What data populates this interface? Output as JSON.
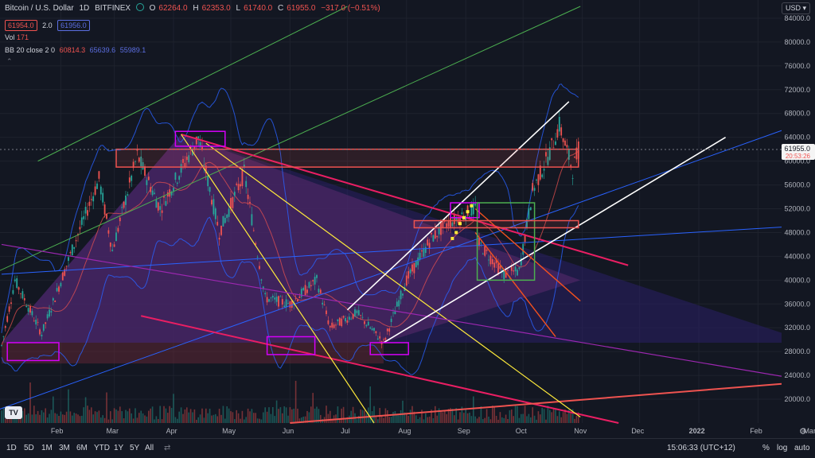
{
  "header": {
    "symbol": "Bitcoin / U.S. Dollar",
    "interval": "1D",
    "exchange": "BITFINEX",
    "ohlc": {
      "o_label": "O",
      "o": "62264.0",
      "h_label": "H",
      "h": "62353.0",
      "l_label": "L",
      "l": "61740.0",
      "c_label": "C",
      "c": "61955.0",
      "change": "−317.0 (−0.51%)"
    },
    "bid": "61954.0",
    "spread": "2.0",
    "ask": "61956.0"
  },
  "indicators": {
    "vol_label": "Vol",
    "vol_value": "171",
    "bb_label": "BB 20 close 2 0",
    "bb_basis": "60814.3",
    "bb_upper": "65639.6",
    "bb_lower": "55989.1"
  },
  "currency": "USD",
  "last_price_tag": "61955.0",
  "countdown_tag": "20:53:26",
  "toolbar": {
    "timeframes": [
      "1D",
      "5D",
      "1M",
      "3M",
      "6M",
      "YTD",
      "1Y",
      "5Y",
      "All"
    ],
    "time": "15:06:33 (UTC+12)",
    "percent": "%",
    "log": "log",
    "auto": "auto"
  },
  "chart_data": {
    "type": "candlestick",
    "title": "Bitcoin / U.S. Dollar",
    "ylim": [
      16000,
      86000
    ],
    "y_ticks": [
      84000,
      80000,
      76000,
      72000,
      68000,
      64000,
      60000,
      56000,
      52000,
      48000,
      44000,
      40000,
      36000,
      32000,
      28000,
      24000,
      20000
    ],
    "x_ticks": [
      "Feb",
      "Mar",
      "Apr",
      "May",
      "Jun",
      "Jul",
      "Aug",
      "Sep",
      "Oct",
      "Nov",
      "Dec",
      "2022",
      "Feb",
      "Mar"
    ],
    "key_points": [
      {
        "date": "2021-01-01",
        "price": 29000
      },
      {
        "date": "2021-01-08",
        "price": 40000
      },
      {
        "date": "2021-01-22",
        "price": 31000
      },
      {
        "date": "2021-02-08",
        "price": 46000
      },
      {
        "date": "2021-02-21",
        "price": 57000
      },
      {
        "date": "2021-02-28",
        "price": 45000
      },
      {
        "date": "2021-03-13",
        "price": 61000
      },
      {
        "date": "2021-03-25",
        "price": 52000
      },
      {
        "date": "2021-04-14",
        "price": 64000
      },
      {
        "date": "2021-04-25",
        "price": 48000
      },
      {
        "date": "2021-05-08",
        "price": 58000
      },
      {
        "date": "2021-05-19",
        "price": 37000
      },
      {
        "date": "2021-06-01",
        "price": 36000
      },
      {
        "date": "2021-06-15",
        "price": 40000
      },
      {
        "date": "2021-06-22",
        "price": 32000
      },
      {
        "date": "2021-07-06",
        "price": 34500
      },
      {
        "date": "2021-07-20",
        "price": 29500
      },
      {
        "date": "2021-08-01",
        "price": 40000
      },
      {
        "date": "2021-08-14",
        "price": 47000
      },
      {
        "date": "2021-08-22",
        "price": 49500
      },
      {
        "date": "2021-09-06",
        "price": 52000
      },
      {
        "date": "2021-09-07",
        "price": 46500
      },
      {
        "date": "2021-09-21",
        "price": 41000
      },
      {
        "date": "2021-09-29",
        "price": 41500
      },
      {
        "date": "2021-10-06",
        "price": 55000
      },
      {
        "date": "2021-10-15",
        "price": 61500
      },
      {
        "date": "2021-10-20",
        "price": 66000
      },
      {
        "date": "2021-10-27",
        "price": 58500
      },
      {
        "date": "2021-10-30",
        "price": 61955
      }
    ],
    "bollinger": {
      "basis": 60814.3,
      "upper": 65639.6,
      "lower": 55989.1
    },
    "volume_last": 171,
    "colors": {
      "up": "#26a69a",
      "down": "#ef5350",
      "bollinger": "#2962ff",
      "trend_pink": "#e91e63",
      "trend_yellow": "#ffeb3b",
      "trend_white": "#ffffff",
      "trend_purple": "#9c27b0",
      "trend_green": "#4caf50",
      "trend_orange": "#f4511e",
      "trend_blue": "#2962ff",
      "zone_red": "#ef5350",
      "triangle_fill": "#3f1f6e"
    }
  }
}
